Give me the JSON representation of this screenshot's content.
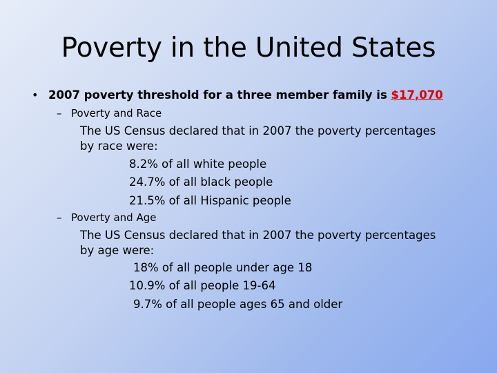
{
  "slide": {
    "title": "Poverty in the United States",
    "main_bullet": {
      "text": "2007 poverty threshold for a three member family is ",
      "highlight": "$17,070",
      "highlight_color": "#e00000"
    },
    "sections": [
      {
        "heading": "Poverty and Race",
        "intro_line1": "The US Census declared that in 2007 the poverty percentages",
        "intro_line2": "by race were:",
        "items": [
          "8.2% of all white people",
          "24.7% of all black people",
          "21.5% of all Hispanic people"
        ]
      },
      {
        "heading": "Poverty and Age",
        "intro_line1": "The US Census declared that in 2007 the poverty percentages",
        "intro_line2": "by age were:",
        "items": [
          "18% of all people under age 18",
          "10.9% of all people 19-64",
          "9.7% of all people ages 65 and older"
        ]
      }
    ],
    "bullet_glyph": "•",
    "dash_glyph": "–"
  }
}
